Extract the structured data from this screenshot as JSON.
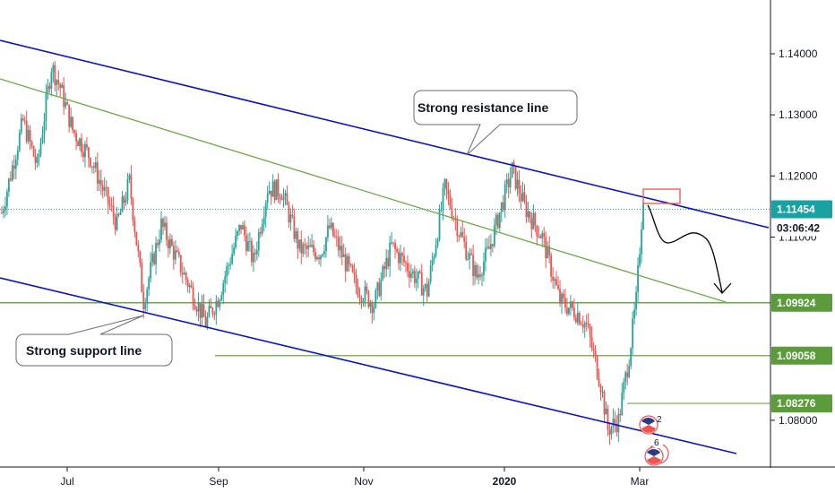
{
  "colors": {
    "up": "#26a69a",
    "down": "#ef5350",
    "channel": "#0a14c8",
    "trend": "#6aaa44",
    "level": "#6aaa44",
    "level_tag": "#5b9b3a",
    "current_tag": "#1aa2a2",
    "current_line": "#1aa2a2",
    "annotation": "#ef5350",
    "arrow": "#000000",
    "axis": "#131722"
  },
  "chart_data": {
    "type": "candlestick",
    "x_tick_labels": [
      "Jul",
      "Sep",
      "Nov",
      "2020",
      "Mar"
    ],
    "y_tick_labels": [
      "1.14000",
      "1.13000",
      "1.12000",
      "1.11000",
      "1.08000"
    ],
    "ylim": [
      1.0725,
      1.1488
    ],
    "grid": false,
    "current_price": {
      "value": 1.11454,
      "label": "1.11454",
      "countdown": "03:06:42"
    },
    "horizontal_levels": [
      {
        "value": 1.09924,
        "label": "1.09924"
      },
      {
        "value": 1.09058,
        "label": "1.09058"
      },
      {
        "value": 1.08276,
        "label": "1.08276"
      }
    ],
    "candles_summary": {
      "count": 185,
      "anchors": [
        [
          0,
          1.114
        ],
        [
          12,
          1.129
        ],
        [
          20,
          1.1215
        ],
        [
          28,
          1.138
        ],
        [
          33,
          1.1345
        ],
        [
          40,
          1.1275
        ],
        [
          50,
          1.123
        ],
        [
          65,
          1.112
        ],
        [
          72,
          1.119
        ],
        [
          80,
          1.0995
        ],
        [
          90,
          1.112
        ],
        [
          105,
          1.1025
        ],
        [
          115,
          1.096
        ],
        [
          122,
          1.1
        ],
        [
          135,
          1.112
        ],
        [
          142,
          1.106
        ],
        [
          150,
          1.118
        ],
        [
          158,
          1.1175
        ],
        [
          168,
          1.108
        ],
        [
          180,
          1.1075
        ],
        [
          185,
          1.1115
        ],
        [
          200,
          1.102
        ],
        [
          210,
          1.099
        ],
        [
          220,
          1.1085
        ],
        [
          240,
          1.101
        ],
        [
          250,
          1.118
        ],
        [
          258,
          1.111
        ],
        [
          268,
          1.1035
        ],
        [
          275,
          1.108
        ],
        [
          282,
          1.115
        ],
        [
          288,
          1.121
        ],
        [
          295,
          1.115
        ],
        [
          305,
          1.11
        ],
        [
          315,
          1.0995
        ],
        [
          325,
          1.0975
        ],
        [
          330,
          1.0955
        ],
        [
          338,
          1.086
        ],
        [
          342,
          1.0785
        ],
        [
          348,
          1.08
        ],
        [
          354,
          1.0905
        ],
        [
          358,
          1.0995
        ],
        [
          362,
          1.117
        ]
      ]
    },
    "lines": [
      {
        "name": "Strong resistance line"
      },
      {
        "name": "Strong support line"
      }
    ]
  },
  "callouts": {
    "resistance": "Strong resistance line",
    "support": "Strong support line"
  },
  "event_markers": [
    {
      "count": "2"
    },
    {
      "count": "6"
    }
  ]
}
